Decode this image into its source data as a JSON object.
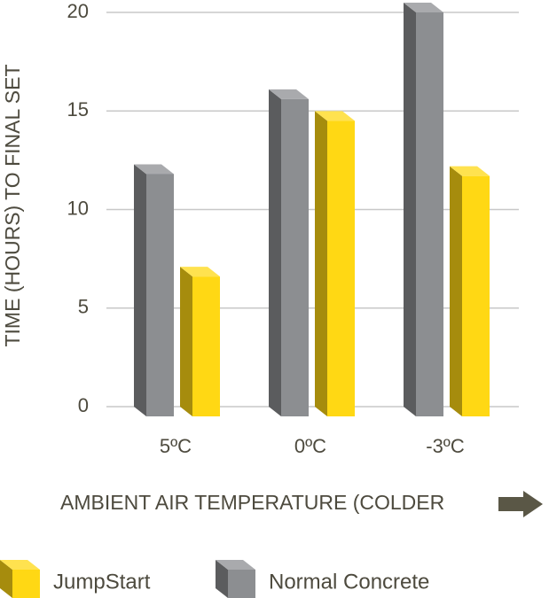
{
  "chart_data": {
    "type": "bar",
    "y_label": "TIME (HOURS) TO FINAL SET",
    "x_label": "AMBIENT AIR TEMPERATURE (COLDER",
    "categories": [
      "5ºC",
      "0ºC",
      "-3ºC"
    ],
    "series": [
      {
        "name": "Normal Concrete",
        "color": "#8c8e91",
        "values": [
          11.8,
          15.6,
          20
        ]
      },
      {
        "name": "JumpStart",
        "color": "#ffd814",
        "values": [
          6.6,
          14.5,
          11.7
        ]
      }
    ],
    "legend_order": [
      "JumpStart",
      "Normal Concrete"
    ],
    "ylim": [
      0,
      20
    ],
    "yticks": [
      0,
      5,
      10,
      15,
      20
    ],
    "grid": true
  }
}
